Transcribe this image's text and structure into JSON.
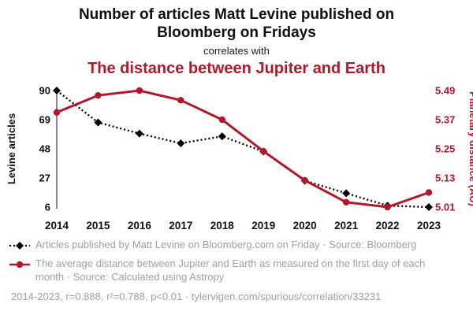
{
  "header": {
    "title": "Number of articles Matt Levine published on Bloomberg on Fridays",
    "connector": "correlates with",
    "title2": "The distance between Jupiter and Earth"
  },
  "colors": {
    "accent_red": "#b2182b",
    "series_black": "#000000",
    "legend_gray": "#a0a0a0"
  },
  "chart_data": {
    "type": "line",
    "x": [
      2014,
      2015,
      2016,
      2017,
      2018,
      2019,
      2020,
      2021,
      2022,
      2023
    ],
    "series": [
      {
        "name": "Articles published by Matt Levine on Bloomberg.com on Friday",
        "axis": "left",
        "color": "#000000",
        "style": "dashed",
        "marker": "diamond",
        "values": [
          90,
          67,
          59,
          52,
          57,
          46,
          25,
          16,
          7,
          6
        ]
      },
      {
        "name": "The average distance between Jupiter and Earth",
        "axis": "right",
        "color": "#b2182b",
        "style": "solid",
        "marker": "circle",
        "values": [
          5.4,
          5.47,
          5.49,
          5.45,
          5.37,
          5.24,
          5.12,
          5.03,
          5.01,
          5.07
        ]
      }
    ],
    "left_axis": {
      "label": "Levine articles",
      "ticks": [
        6,
        27,
        48,
        69,
        90
      ],
      "min": 6,
      "max": 90
    },
    "right_axis": {
      "label": "Planetary distance (AU)",
      "ticks": [
        "5.01",
        "5.13",
        "5.25",
        "5.37",
        "5.49"
      ],
      "min": 5.01,
      "max": 5.49
    },
    "grid": false,
    "legend_position": "bottom"
  },
  "legend": [
    {
      "marker": "black-diamond-dashed-line",
      "label": "Articles published by Matt Levine on Bloomberg.com on Friday · Source: Bloomberg"
    },
    {
      "marker": "red-circle-solid-line",
      "label": "The average distance between Jupiter and Earth as measured on the first day of each month · Source: Calculated using Astropy"
    }
  ],
  "footer": {
    "text": "2014-2023, r=0.888, r²=0.788, p<0.01 · tylervigen.com/spurious/correlation/33231"
  }
}
